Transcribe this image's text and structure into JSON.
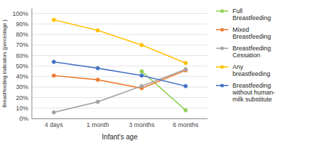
{
  "chart_data": {
    "type": "line",
    "categories": [
      "4 days",
      "1 month",
      "3 months",
      "6 months"
    ],
    "series": [
      {
        "name": "Full\nBreastfeeding",
        "color": "#92D050",
        "values": [
          null,
          null,
          45,
          8
        ]
      },
      {
        "name": "Mixed\nBreastfeeding",
        "color": "#ED7D31",
        "values": [
          41,
          37,
          29,
          46
        ]
      },
      {
        "name": "Breastfeeding\nCessation",
        "color": "#A5A5A5",
        "values": [
          6,
          16,
          31,
          47
        ]
      },
      {
        "name": "Any\nbreastfeeding",
        "color": "#FFC000",
        "values": [
          94,
          84,
          70,
          53
        ]
      },
      {
        "name": "Breastfeeding\nwithout human-\nmilk substitute",
        "color": "#4472C4",
        "values": [
          54,
          48,
          41,
          31
        ]
      }
    ],
    "x_label": "Infant's age",
    "y_label": "Breastfeeding Indicators (percentage )",
    "ylim": [
      0,
      105
    ],
    "yticks": [
      {
        "value": 0,
        "label": "0%"
      },
      {
        "value": 10,
        "label": "10%"
      },
      {
        "value": 20,
        "label": "20%"
      },
      {
        "value": 30,
        "label": "30%"
      },
      {
        "value": 40,
        "label": "40%"
      },
      {
        "value": 50,
        "label": "50%"
      },
      {
        "value": 60,
        "label": "60%"
      },
      {
        "value": 70,
        "label": "70%"
      },
      {
        "value": 80,
        "label": "80%"
      },
      {
        "value": 90,
        "label": "90%"
      },
      {
        "value": 100,
        "label": "100%"
      }
    ],
    "grid": true,
    "legend": "right",
    "marker": "circle",
    "line_style": "solid"
  }
}
